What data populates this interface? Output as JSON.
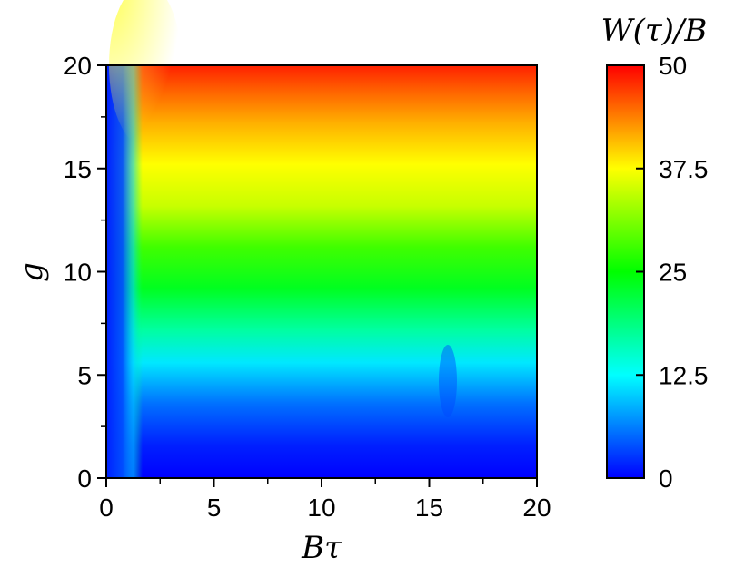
{
  "chart_data": {
    "type": "heatmap",
    "title": "",
    "xlabel": "Bτ",
    "ylabel": "g",
    "xlim": [
      0,
      20
    ],
    "ylim": [
      0,
      20
    ],
    "x_ticks": [
      "0",
      "5",
      "10",
      "15",
      "20"
    ],
    "y_ticks": [
      "0",
      "5",
      "10",
      "15",
      "20"
    ],
    "colorbar": {
      "title": "W(τ)/B",
      "range": [
        0,
        50
      ],
      "ticks": [
        "0",
        "12.5",
        "25",
        "37.5",
        "50"
      ],
      "colormap": [
        "#0000ff",
        "#00ffff",
        "#00ff00",
        "#ffff00",
        "#ff0000"
      ]
    },
    "value_by_g": [
      {
        "g": 0,
        "value": 0
      },
      {
        "g": 3,
        "value": 3
      },
      {
        "g": 6,
        "value": 12
      },
      {
        "g": 10,
        "value": 25
      },
      {
        "g": 15,
        "value": 37.5
      },
      {
        "g": 20,
        "value": 50
      }
    ],
    "grid": false,
    "legend": "right"
  }
}
